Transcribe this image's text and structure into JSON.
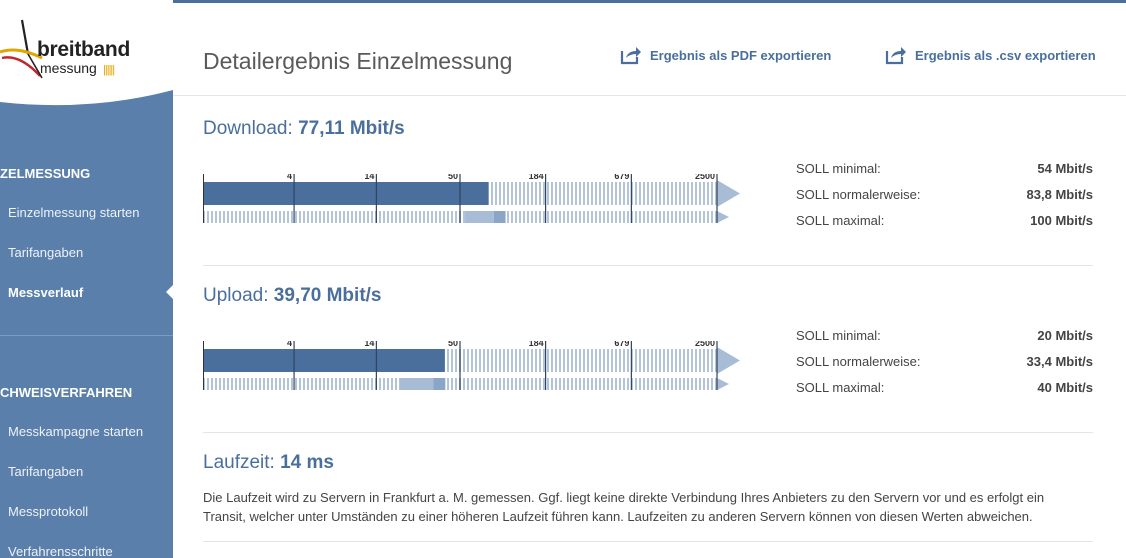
{
  "logo": {
    "word1": "breitband",
    "word2": "messung",
    "bars": "||||||"
  },
  "sidebar": {
    "sections": [
      {
        "label": "ZELMESSUNG",
        "items": [
          {
            "label": "Einzelmessung starten",
            "active": false
          },
          {
            "label": "Tarifangaben",
            "active": false
          },
          {
            "label": "Messverlauf",
            "active": true
          }
        ]
      },
      {
        "label": "CHWEISVERFAHREN",
        "items": [
          {
            "label": "Messkampagne starten",
            "active": false
          },
          {
            "label": "Tarifangaben",
            "active": false
          },
          {
            "label": "Messprotokoll",
            "active": false
          },
          {
            "label": "Verfahrensschritte",
            "active": false
          }
        ]
      }
    ]
  },
  "header": {
    "title": "Detailergebnis Einzelmessung",
    "export_pdf": "Ergebnis als PDF exportieren",
    "export_csv": "Ergebnis als .csv exportieren",
    "export_icon": "export-icon"
  },
  "scale_ticks": [
    "4",
    "14",
    "50",
    "184",
    "679",
    "2500"
  ],
  "download": {
    "label": "Download:",
    "value": "77,11 Mbit/s",
    "measured_mbit": 77.11,
    "soll_min_mbit": 54,
    "soll_normal_mbit": 83.8,
    "soll_max_mbit": 100,
    "soll": [
      {
        "label": "SOLL minimal:",
        "value": "54 Mbit/s"
      },
      {
        "label": "SOLL normalerweise:",
        "value": "83,8 Mbit/s"
      },
      {
        "label": "SOLL maximal:",
        "value": "100 Mbit/s"
      }
    ]
  },
  "upload": {
    "label": "Upload:",
    "value": "39,70 Mbit/s",
    "measured_mbit": 39.7,
    "soll_min_mbit": 20,
    "soll_normal_mbit": 33.4,
    "soll_max_mbit": 40,
    "soll": [
      {
        "label": "SOLL minimal:",
        "value": "20 Mbit/s"
      },
      {
        "label": "SOLL normalerweise:",
        "value": "33,4 Mbit/s"
      },
      {
        "label": "SOLL maximal:",
        "value": "40 Mbit/s"
      }
    ]
  },
  "latency": {
    "label": "Laufzeit:",
    "value": "14 ms",
    "text_line1": "Die Laufzeit wird zu Servern in Frankfurt a. M. gemessen. Ggf. liegt keine direkte Verbindung Ihres Anbieters zu den Servern vor und es erfolgt ein",
    "text_line2": "Transit, welcher unter Umständen zu einer höheren Laufzeit führen kann. Laufzeiten zu anderen Servern können von diesen Werten abweichen."
  },
  "colors": {
    "accent": "#4a6f9c",
    "sidebar": "#5a7fab",
    "bar_dark": "#4a6f9c",
    "bar_light": "#a8bdd5",
    "hatch": "#b3c4d8"
  }
}
